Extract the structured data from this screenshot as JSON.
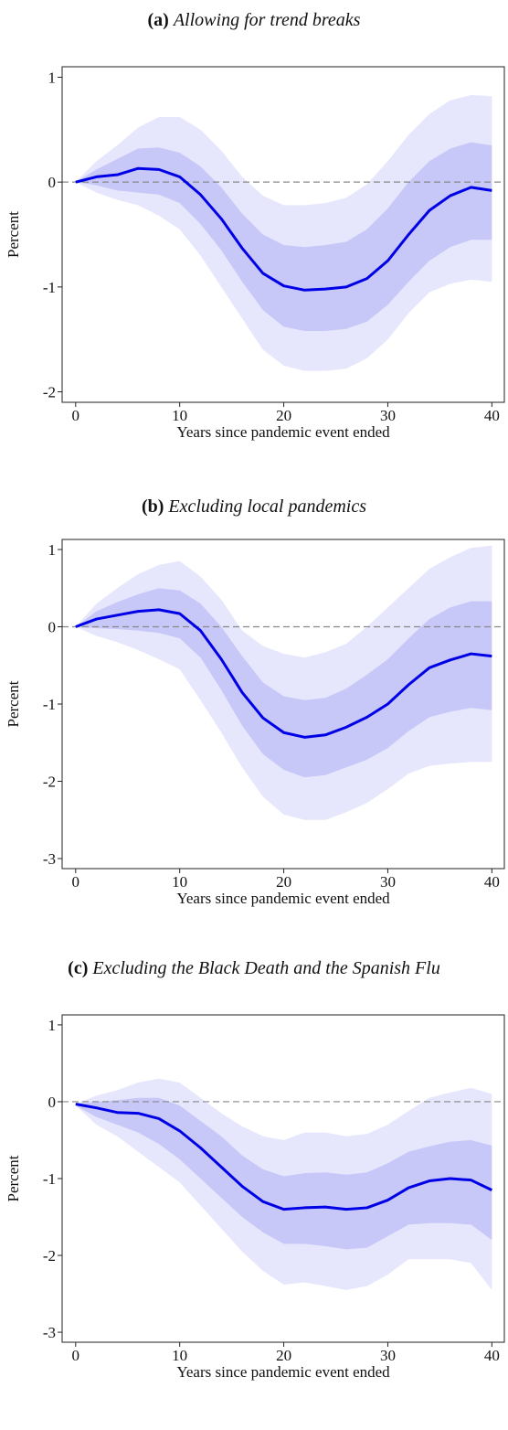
{
  "chart_data": [
    {
      "type": "line",
      "label": "(a)",
      "title": "Allowing for trend breaks",
      "xlabel": "Years since pandemic event ended",
      "ylabel": "Percent",
      "x": [
        0,
        2,
        4,
        6,
        8,
        10,
        12,
        14,
        16,
        18,
        20,
        22,
        24,
        26,
        28,
        30,
        32,
        34,
        36,
        38,
        40
      ],
      "xlim": [
        -1.3,
        41.2
      ],
      "ylim": [
        -2.1,
        1.1
      ],
      "xticks": [
        0,
        10,
        20,
        30,
        40
      ],
      "yticks": [
        -2,
        -1,
        0,
        1
      ],
      "reference_line": 0,
      "series": [
        {
          "color": "#0000e6",
          "values": [
            0,
            0.05,
            0.07,
            0.13,
            0.12,
            0.05,
            -0.12,
            -0.35,
            -0.63,
            -0.87,
            -0.99,
            -1.03,
            -1.02,
            -1.0,
            -0.92,
            -0.75,
            -0.5,
            -0.27,
            -0.13,
            -0.05,
            -0.08
          ]
        }
      ],
      "bands": [
        {
          "color": "#e6e6fc",
          "upper": [
            0,
            0.2,
            0.35,
            0.52,
            0.62,
            0.62,
            0.5,
            0.3,
            0.05,
            -0.13,
            -0.22,
            -0.22,
            -0.2,
            -0.15,
            -0.02,
            0.2,
            0.45,
            0.65,
            0.78,
            0.83,
            0.82
          ],
          "lower": [
            0,
            -0.1,
            -0.17,
            -0.22,
            -0.32,
            -0.45,
            -0.7,
            -1.0,
            -1.3,
            -1.6,
            -1.75,
            -1.8,
            -1.8,
            -1.78,
            -1.68,
            -1.5,
            -1.25,
            -1.05,
            -0.97,
            -0.93,
            -0.95
          ]
        },
        {
          "color": "#c8c8f8",
          "upper": [
            0,
            0.12,
            0.22,
            0.32,
            0.33,
            0.28,
            0.15,
            -0.05,
            -0.3,
            -0.5,
            -0.6,
            -0.62,
            -0.6,
            -0.57,
            -0.45,
            -0.25,
            0.0,
            0.2,
            0.32,
            0.38,
            0.35
          ],
          "lower": [
            0,
            -0.03,
            -0.08,
            -0.1,
            -0.12,
            -0.2,
            -0.4,
            -0.65,
            -0.95,
            -1.22,
            -1.38,
            -1.42,
            -1.42,
            -1.4,
            -1.33,
            -1.17,
            -0.95,
            -0.75,
            -0.62,
            -0.55,
            -0.55
          ]
        }
      ]
    },
    {
      "type": "line",
      "label": "(b)",
      "title": "Excluding local pandemics",
      "xlabel": "Years since pandemic event ended",
      "ylabel": "Percent",
      "x": [
        0,
        2,
        4,
        6,
        8,
        10,
        12,
        14,
        16,
        18,
        20,
        22,
        24,
        26,
        28,
        30,
        32,
        34,
        36,
        38,
        40
      ],
      "xlim": [
        -1.3,
        41.2
      ],
      "ylim": [
        -3.13,
        1.13
      ],
      "xticks": [
        0,
        10,
        20,
        30,
        40
      ],
      "yticks": [
        -3,
        -2,
        -1,
        0,
        1
      ],
      "reference_line": 0,
      "series": [
        {
          "color": "#0000e6",
          "values": [
            0,
            0.1,
            0.15,
            0.2,
            0.22,
            0.17,
            -0.05,
            -0.42,
            -0.85,
            -1.18,
            -1.37,
            -1.43,
            -1.4,
            -1.3,
            -1.17,
            -1.0,
            -0.75,
            -0.53,
            -0.43,
            -0.35,
            -0.38
          ]
        }
      ],
      "bands": [
        {
          "color": "#e6e6fc",
          "upper": [
            0,
            0.3,
            0.5,
            0.68,
            0.8,
            0.85,
            0.65,
            0.35,
            -0.05,
            -0.25,
            -0.35,
            -0.4,
            -0.33,
            -0.22,
            0.0,
            0.25,
            0.5,
            0.75,
            0.9,
            1.02,
            1.05
          ],
          "lower": [
            0,
            -0.12,
            -0.2,
            -0.3,
            -0.42,
            -0.55,
            -0.95,
            -1.37,
            -1.82,
            -2.2,
            -2.43,
            -2.5,
            -2.5,
            -2.4,
            -2.28,
            -2.1,
            -1.9,
            -1.8,
            -1.77,
            -1.75,
            -1.75
          ]
        },
        {
          "color": "#c8c8f8",
          "upper": [
            0,
            0.2,
            0.32,
            0.42,
            0.5,
            0.47,
            0.3,
            0.0,
            -0.38,
            -0.72,
            -0.9,
            -0.95,
            -0.92,
            -0.8,
            -0.62,
            -0.42,
            -0.15,
            0.1,
            0.25,
            0.33,
            0.33
          ],
          "lower": [
            0,
            -0.02,
            -0.03,
            -0.05,
            -0.08,
            -0.15,
            -0.4,
            -0.82,
            -1.28,
            -1.65,
            -1.85,
            -1.95,
            -1.92,
            -1.82,
            -1.72,
            -1.57,
            -1.35,
            -1.17,
            -1.1,
            -1.05,
            -1.08
          ]
        }
      ]
    },
    {
      "type": "line",
      "label": "(c)",
      "title": "Excluding the Black Death and the Spanish Flu",
      "xlabel": "Years since pandemic event ended",
      "ylabel": "Percent",
      "x": [
        0,
        2,
        4,
        6,
        8,
        10,
        12,
        14,
        16,
        18,
        20,
        22,
        24,
        26,
        28,
        30,
        32,
        34,
        36,
        38,
        40
      ],
      "xlim": [
        -1.3,
        41.2
      ],
      "ylim": [
        -3.13,
        1.13
      ],
      "xticks": [
        0,
        10,
        20,
        30,
        40
      ],
      "yticks": [
        -3,
        -2,
        -1,
        0,
        1
      ],
      "reference_line": 0,
      "series": [
        {
          "color": "#0000e6",
          "values": [
            -0.03,
            -0.08,
            -0.14,
            -0.15,
            -0.22,
            -0.38,
            -0.6,
            -0.85,
            -1.1,
            -1.3,
            -1.4,
            -1.38,
            -1.37,
            -1.4,
            -1.38,
            -1.28,
            -1.12,
            -1.03,
            -1.0,
            -1.02,
            -1.15
          ]
        }
      ],
      "bands": [
        {
          "color": "#e6e6fc",
          "upper": [
            -0.03,
            0.08,
            0.15,
            0.25,
            0.3,
            0.25,
            0.05,
            -0.15,
            -0.32,
            -0.45,
            -0.5,
            -0.4,
            -0.4,
            -0.45,
            -0.42,
            -0.3,
            -0.12,
            0.05,
            0.12,
            0.18,
            0.1
          ],
          "lower": [
            -0.05,
            -0.3,
            -0.45,
            -0.65,
            -0.85,
            -1.05,
            -1.35,
            -1.65,
            -1.95,
            -2.2,
            -2.38,
            -2.35,
            -2.4,
            -2.45,
            -2.4,
            -2.25,
            -2.05,
            -2.05,
            -2.05,
            -2.1,
            -2.45
          ]
        },
        {
          "color": "#c8c8f8",
          "upper": [
            -0.03,
            0.0,
            0.02,
            0.05,
            0.05,
            -0.05,
            -0.25,
            -0.45,
            -0.7,
            -0.88,
            -0.97,
            -0.93,
            -0.92,
            -0.95,
            -0.92,
            -0.8,
            -0.65,
            -0.58,
            -0.52,
            -0.5,
            -0.57
          ],
          "lower": [
            -0.05,
            -0.2,
            -0.3,
            -0.4,
            -0.55,
            -0.75,
            -1.0,
            -1.25,
            -1.5,
            -1.7,
            -1.85,
            -1.85,
            -1.88,
            -1.92,
            -1.9,
            -1.75,
            -1.6,
            -1.58,
            -1.58,
            -1.6,
            -1.8
          ]
        }
      ]
    }
  ]
}
